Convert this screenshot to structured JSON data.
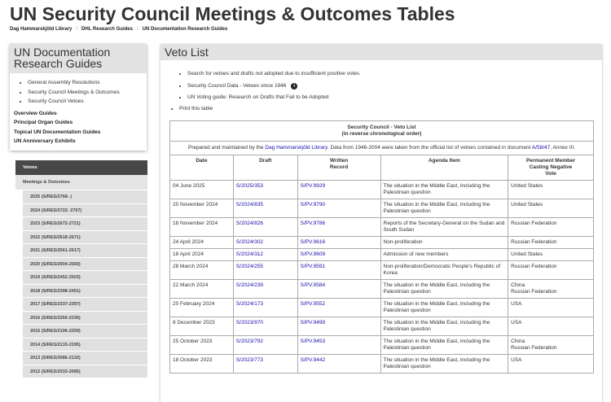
{
  "page_title": "UN Security Council Meetings & Outcomes Tables",
  "breadcrumb": [
    "Dag Hammarskjöld Library",
    "DHL Research Guides",
    "UN Documentation Research Guides"
  ],
  "guide_box": {
    "title": "UN Documentation Research Guides",
    "links": [
      "General Assembly Resolutions",
      "Security Council Meetings & Outcomes",
      "Security Council Vetoes"
    ],
    "bold_links": [
      "Overview Guides",
      "Principal Organ Guides",
      "Topical UN Documentation Guides",
      "UN Anniversary Exhibits"
    ]
  },
  "side_nav": {
    "active": "Vetoes",
    "section": "Meetings & Outcomes",
    "years": [
      "2025 (S/RES/2768- )",
      "2024 (S/RES/2722- 2767)",
      "2023 (S/RES/2672-2721)",
      "2022 (S/RES/2618-2671)",
      "2021 (S/RES/2561-2617)",
      "2020 (S/RES/2504-2560)",
      "2019 (S/RES/2452-2503)",
      "2018 (S/RES/2398-2451)",
      "2017 (S/RES/2337-2397)",
      "2016 (S/RES/2260-2336)",
      "2015 (S/RES/2196-2259)",
      "2014 (S/RES/2133-2195)",
      "2013 (S/RES/2086-2132)",
      "2012 (S/RES/2033-2085)"
    ]
  },
  "veto": {
    "title": "Veto List",
    "links": [
      "Search for vetoes and drafts not adopted due to insufficient positive votes",
      "Security Council Data - Vetoes since 1946",
      "UN Voting guide: Research on Drafts that Fail to be Adopted"
    ],
    "info_icon": "info-circle-icon",
    "print": "Print this table",
    "table": {
      "caption1": "Security Council - Veto List",
      "caption2": "(in reverse chronological order)",
      "note_pre": "Prepared and maintained by the ",
      "note_link1": "Dag Hammarskjöld Library",
      "note_mid": ". Data from 1946-2004 were taken from the official list of vetoes contained in document ",
      "note_link2": "A/58/47",
      "note_post": ", Annex III.",
      "headers": [
        "Date",
        "Draft",
        "Written Record",
        "Agenda Item",
        "Permanent Member Casting Negative Vote"
      ],
      "rows": [
        [
          "04 June 2025",
          "S/2025/353",
          "S/PV.9929",
          "The situation in the Middle East, including the Palestinian question",
          "United States"
        ],
        [
          "20 November 2024",
          "S/2024/835",
          "S/PV.9790",
          "The situation in the Middle East, including the Palestinian question",
          "United States"
        ],
        [
          "18 November 2024",
          "S/2024/826",
          "S/PV.9786",
          "Reports of the Secretary-General on the Sudan and South Sudan",
          "Russian Federation"
        ],
        [
          "24 April 2024",
          "S/2024/302",
          "S/PV.9616",
          "Non-proliferation",
          "Russian Federation"
        ],
        [
          "18 April 2024",
          "S/2024/312",
          "S/PV.9609",
          "Admission of new members",
          "United States"
        ],
        [
          "28 March 2024",
          "S/2024/255",
          "S/PV.9591",
          "Non-proliferation/Democratic People's Republic of Korea",
          "Russian Federation"
        ],
        [
          "22 March 2024",
          "S/2024/239",
          "S/PV.9584",
          "The situation in the Middle East, including the Palestinian question",
          "China\nRussian Federation"
        ],
        [
          "20 February 2024",
          "S/2024/173",
          "S/PV.9552",
          "The situation in the Middle East, including the Palestinian question",
          "USA"
        ],
        [
          "8 December 2023",
          "S/2023/970",
          "S/PV.9499",
          "The situation in the Middle East, including the Palestinian question",
          "USA"
        ],
        [
          "25 October 2023",
          "S/2023/792",
          "S/PV.9453",
          "The situation in the Middle East, including the Palestinian question",
          "China\nRussian Federation"
        ],
        [
          "18 October 2023",
          "S/2023/773",
          "S/PV.9442",
          "The situation in the Middle East, including the Palestinian question",
          "USA"
        ]
      ]
    }
  }
}
